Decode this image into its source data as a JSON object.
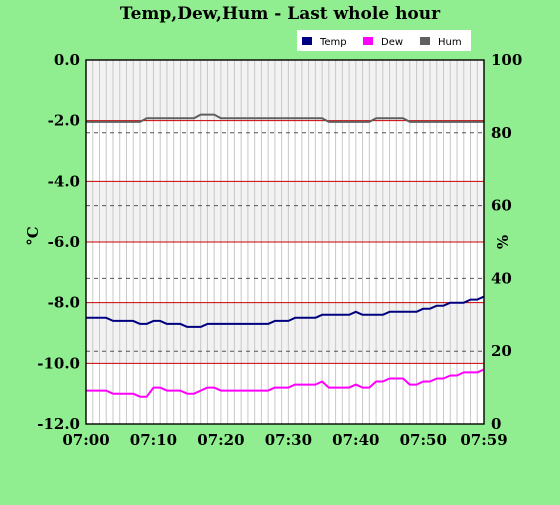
{
  "chart_data": {
    "type": "line",
    "title": "Temp,Dew,Hum - Last whole hour",
    "ylabel": "°C",
    "y2label": "%",
    "x_ticks": [
      "07:00",
      "07:10",
      "07:20",
      "07:30",
      "07:40",
      "07:50",
      "07:59"
    ],
    "x_range": [
      0,
      59
    ],
    "ylim": [
      -12.0,
      0.0
    ],
    "y_ticks": [
      "0.0",
      "-2.0",
      "-4.0",
      "-6.0",
      "-8.0",
      "-10.0",
      "-12.0"
    ],
    "y2lim": [
      0,
      100
    ],
    "y2_ticks": [
      "100",
      "80",
      "60",
      "40",
      "20",
      "0"
    ],
    "grid": true,
    "legend_position": "top-right",
    "colors": {
      "background": "#90ee90",
      "plot_band_light": "#f2f2f2",
      "plot_band_white": "#ffffff",
      "minute_grid": "#c8c8c8",
      "left_grid": "#cc0000",
      "right_grid": "#555555",
      "temp": "#000080",
      "dew": "#ff00ff",
      "hum": "#606060"
    },
    "series": [
      {
        "name": "Temp",
        "axis": "left",
        "x": [
          0,
          3,
          4,
          7,
          8,
          9,
          10,
          11,
          12,
          13,
          14,
          15,
          16,
          17,
          18,
          19,
          20,
          27,
          28,
          30,
          31,
          34,
          35,
          39,
          40,
          41,
          44,
          45,
          49,
          50,
          51,
          52,
          53,
          54,
          56,
          57,
          58,
          59
        ],
        "values": [
          -8.5,
          -8.5,
          -8.6,
          -8.6,
          -8.7,
          -8.7,
          -8.6,
          -8.6,
          -8.7,
          -8.7,
          -8.7,
          -8.8,
          -8.8,
          -8.8,
          -8.7,
          -8.7,
          -8.7,
          -8.7,
          -8.6,
          -8.6,
          -8.5,
          -8.5,
          -8.4,
          -8.4,
          -8.3,
          -8.4,
          -8.4,
          -8.3,
          -8.3,
          -8.2,
          -8.2,
          -8.1,
          -8.1,
          -8.0,
          -8.0,
          -7.9,
          -7.9,
          -7.8
        ]
      },
      {
        "name": "Dew",
        "axis": "left",
        "x": [
          0,
          3,
          4,
          7,
          8,
          9,
          10,
          11,
          12,
          13,
          14,
          15,
          16,
          17,
          18,
          19,
          20,
          27,
          28,
          30,
          31,
          34,
          35,
          36,
          39,
          40,
          41,
          42,
          43,
          44,
          45,
          46,
          47,
          48,
          49,
          50,
          51,
          52,
          53,
          54,
          55,
          56,
          57,
          58,
          59
        ],
        "values": [
          -10.9,
          -10.9,
          -11.0,
          -11.0,
          -11.1,
          -11.1,
          -10.8,
          -10.8,
          -10.9,
          -10.9,
          -10.9,
          -11.0,
          -11.0,
          -10.9,
          -10.8,
          -10.8,
          -10.9,
          -10.9,
          -10.8,
          -10.8,
          -10.7,
          -10.7,
          -10.6,
          -10.8,
          -10.8,
          -10.7,
          -10.8,
          -10.8,
          -10.6,
          -10.6,
          -10.5,
          -10.5,
          -10.5,
          -10.7,
          -10.7,
          -10.6,
          -10.6,
          -10.5,
          -10.5,
          -10.4,
          -10.4,
          -10.3,
          -10.3,
          -10.3,
          -10.2
        ]
      },
      {
        "name": "Hum",
        "axis": "right",
        "x": [
          0,
          8,
          9,
          16,
          17,
          19,
          20,
          35,
          36,
          42,
          43,
          47,
          48,
          59
        ],
        "values": [
          83,
          83,
          84,
          84,
          85,
          85,
          84,
          84,
          83,
          83,
          84,
          84,
          83,
          83
        ]
      }
    ]
  }
}
